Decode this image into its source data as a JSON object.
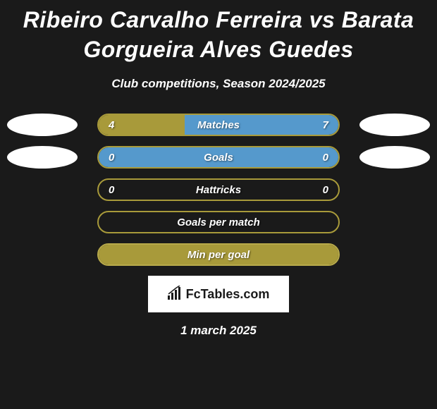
{
  "title": "Ribeiro Carvalho Ferreira vs Barata Gorgueira Alves Guedes",
  "subtitle": "Club competitions, Season 2024/2025",
  "date": "1 march 2025",
  "logo_text": "FcTables.com",
  "colors": {
    "background": "#1a1a1a",
    "olive": "#a89a3a",
    "olive_light": "#b8aa4a",
    "blue": "#5599cc",
    "avatar": "#ffffff",
    "text": "#ffffff"
  },
  "stats": [
    {
      "label": "Matches",
      "left_value": "4",
      "right_value": "7",
      "left_fill_pct": 36,
      "right_fill_pct": 64,
      "left_fill_color": "#a89a3a",
      "right_fill_color": "#5599cc",
      "border_color": "#a89a3a",
      "show_avatars": true
    },
    {
      "label": "Goals",
      "left_value": "0",
      "right_value": "0",
      "left_fill_pct": 100,
      "right_fill_pct": 0,
      "left_fill_color": "#5599cc",
      "right_fill_color": "#5599cc",
      "border_color": "#a89a3a",
      "show_avatars": true
    },
    {
      "label": "Hattricks",
      "left_value": "0",
      "right_value": "0",
      "left_fill_pct": 0,
      "right_fill_pct": 0,
      "left_fill_color": "#a89a3a",
      "right_fill_color": "#a89a3a",
      "border_color": "#a89a3a",
      "show_avatars": false
    },
    {
      "label": "Goals per match",
      "left_value": "",
      "right_value": "",
      "left_fill_pct": 0,
      "right_fill_pct": 0,
      "left_fill_color": "#a89a3a",
      "right_fill_color": "#a89a3a",
      "border_color": "#a89a3a",
      "show_avatars": false
    },
    {
      "label": "Min per goal",
      "left_value": "",
      "right_value": "",
      "left_fill_pct": 100,
      "right_fill_pct": 0,
      "left_fill_color": "#a89a3a",
      "right_fill_color": "#a89a3a",
      "border_color": "#b8aa4a",
      "show_avatars": false
    }
  ]
}
